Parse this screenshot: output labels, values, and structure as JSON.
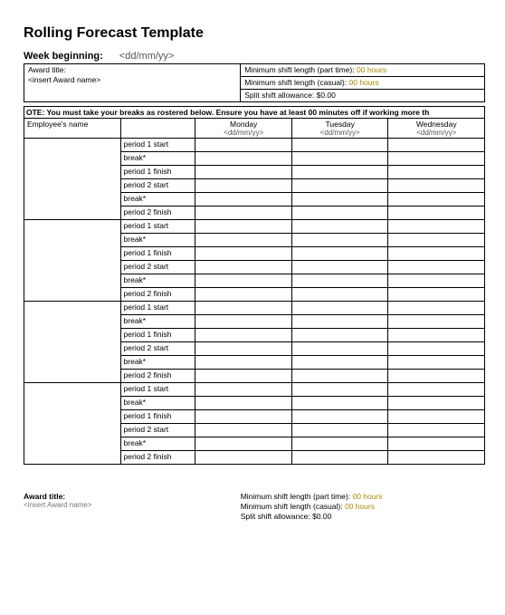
{
  "title": "Rolling Forecast Template",
  "week": {
    "label": "Week beginning:",
    "value": "<dd/mm/yy>"
  },
  "meta_top": {
    "award_title_label": "Award title:",
    "award_title_value": "<insert Award name>",
    "min_shift_part_label": "Minimum shift length (part time):",
    "min_shift_part_value": "00 hours",
    "min_shift_casual_label": "Minimum shift length (casual):",
    "min_shift_casual_value": "00 hours",
    "split_label": "Split shift allowance:",
    "split_value": "$0.00"
  },
  "note": "OTE: You must take your breaks as rostered below. Ensure you have at least 00 minutes off if working more th",
  "grid": {
    "employee_header": "Employee's name",
    "days": [
      {
        "name": "Monday",
        "fmt": "<dd/mm/yy>"
      },
      {
        "name": "Tuesday",
        "fmt": "<dd/mm/yy>"
      },
      {
        "name": "Wednesday",
        "fmt": "<dd/mm/yy>"
      }
    ],
    "period_labels": [
      "period 1 start",
      "break*",
      "period 1 finish",
      "period 2 start",
      "break*",
      "period 2 finish"
    ],
    "employee_count": 4
  },
  "meta_bottom": {
    "award_title_label": "Award title:",
    "award_title_value": "<insert Award name>",
    "min_shift_part_label": "Minimum shift length (part time):",
    "min_shift_part_value": "00 hours",
    "min_shift_casual_label": "Minimum shift length (casual):",
    "min_shift_casual_value": "00 hours",
    "split_label": "Split shift allowance:",
    "split_value": "$0.00"
  },
  "styling": {
    "background": "#ffffff",
    "border_color": "#000000",
    "muted_color": "#aa8800",
    "title_fontsize_pt": 16,
    "body_fontsize_pt": 9,
    "table_fontsize_pt": 8.5
  }
}
